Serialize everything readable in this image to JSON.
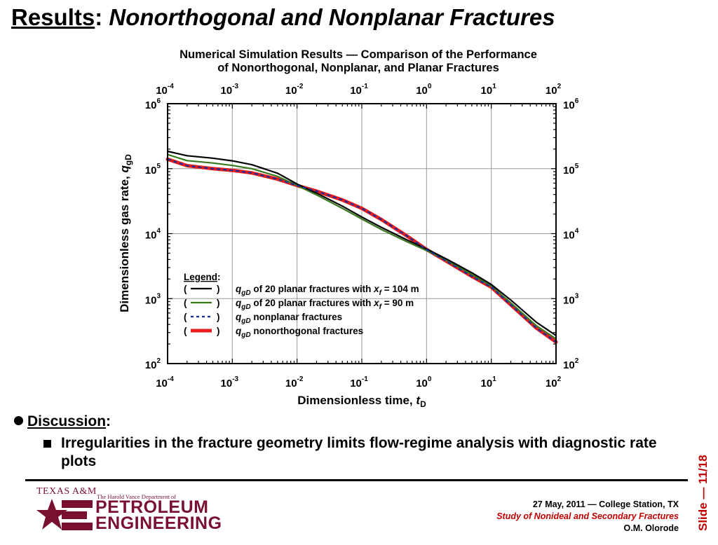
{
  "slide": {
    "title_prefix": "Results",
    "title_colon": ":",
    "title_rest": "Nonorthogonal and Nonplanar Fractures"
  },
  "discussion": {
    "heading": "Discussion",
    "colon": ":",
    "point": "Irregularities in the fracture geometry limits flow-regime analysis with diagnostic rate plots"
  },
  "footer": {
    "date_place": "27 May, 2011 — College Station, TX",
    "course": "Study of Nonideal and Secondary Fractures",
    "author": "O.M. Olorode",
    "slide_number": "Slide — 11/18"
  },
  "logo": {
    "university": "TEXAS A&M",
    "department": "The Harold Vance Department of",
    "name_line1": "PETROLEUM",
    "name_line2": "ENGINEERING",
    "color": "#7a1030"
  },
  "chart_data": {
    "type": "line",
    "title_lines": [
      "Numerical Simulation Results — Comparison of  the Performance",
      "of Nonorthogonal, Nonplanar, and Planar Fractures"
    ],
    "xlabel": "Dimensionless time, t_D",
    "ylabel": "Dimensionless gas rate, q_gD",
    "x_scale": "log",
    "y_scale": "log",
    "xlim": [
      0.0001,
      100
    ],
    "ylim": [
      100,
      1000000
    ],
    "x_ticks": [
      {
        "value": 0.0001,
        "base": "10",
        "exp": "-4"
      },
      {
        "value": 0.001,
        "base": "10",
        "exp": "-3"
      },
      {
        "value": 0.01,
        "base": "10",
        "exp": "-2"
      },
      {
        "value": 0.1,
        "base": "10",
        "exp": "-1"
      },
      {
        "value": 1,
        "base": "10",
        "exp": "0"
      },
      {
        "value": 10,
        "base": "10",
        "exp": "1"
      },
      {
        "value": 100,
        "base": "10",
        "exp": "2"
      }
    ],
    "y_ticks": [
      {
        "value": 100,
        "base": "10",
        "exp": "2"
      },
      {
        "value": 1000,
        "base": "10",
        "exp": "3"
      },
      {
        "value": 10000,
        "base": "10",
        "exp": "4"
      },
      {
        "value": 100000,
        "base": "10",
        "exp": "5"
      },
      {
        "value": 1000000,
        "base": "10",
        "exp": "6"
      }
    ],
    "grid": true,
    "legend_title": "Legend",
    "legend_placement": "bottom-left",
    "series": [
      {
        "legend_label": "of 20 planar fractures with x_f = 104 m",
        "style": "solid",
        "color": "#000000",
        "x": [
          0.0001,
          0.0002,
          0.0005,
          0.001,
          0.002,
          0.005,
          0.01,
          0.02,
          0.05,
          0.1,
          0.2,
          0.5,
          1,
          2,
          5,
          10,
          20,
          50,
          100
        ],
        "y": [
          185000,
          158000,
          145000,
          132000,
          115000,
          85000,
          58000,
          42000,
          26500,
          18000,
          12500,
          8000,
          5800,
          4100,
          2500,
          1650,
          950,
          430,
          270
        ]
      },
      {
        "legend_label": "of 20 planar fractures with x_f = 90 m",
        "style": "solid",
        "color": "#3a7a1e",
        "x": [
          0.0001,
          0.0002,
          0.0005,
          0.001,
          0.002,
          0.005,
          0.01,
          0.02,
          0.05,
          0.1,
          0.2,
          0.5,
          1,
          2,
          5,
          10,
          20,
          50,
          100
        ],
        "y": [
          165000,
          133000,
          122000,
          112000,
          100000,
          76000,
          55000,
          39500,
          24500,
          16800,
          11600,
          7500,
          5500,
          3900,
          2350,
          1550,
          860,
          380,
          240
        ]
      },
      {
        "legend_label": "nonplanar fractures",
        "style": "dashed",
        "color": "#1030a0",
        "x": [
          0.0001,
          0.0002,
          0.0005,
          0.001,
          0.002,
          0.005,
          0.01,
          0.02,
          0.05,
          0.1,
          0.2,
          0.5,
          1,
          2,
          5,
          10,
          20,
          50,
          100
        ],
        "y": [
          140000,
          111000,
          100000,
          94000,
          86000,
          69000,
          55000,
          45000,
          33000,
          24500,
          16500,
          9200,
          5700,
          3800,
          2200,
          1500,
          800,
          350,
          215
        ]
      },
      {
        "legend_label": "nonorthogonal fractures",
        "style": "thick",
        "color": "#e81c1c",
        "x": [
          0.0001,
          0.0002,
          0.0005,
          0.001,
          0.002,
          0.005,
          0.01,
          0.02,
          0.05,
          0.1,
          0.2,
          0.5,
          1,
          2,
          5,
          10,
          20,
          50,
          100
        ],
        "y": [
          140000,
          111000,
          100000,
          94000,
          86000,
          69000,
          55000,
          45000,
          33000,
          24500,
          16500,
          9200,
          5700,
          3800,
          2200,
          1500,
          800,
          350,
          215
        ]
      }
    ]
  }
}
